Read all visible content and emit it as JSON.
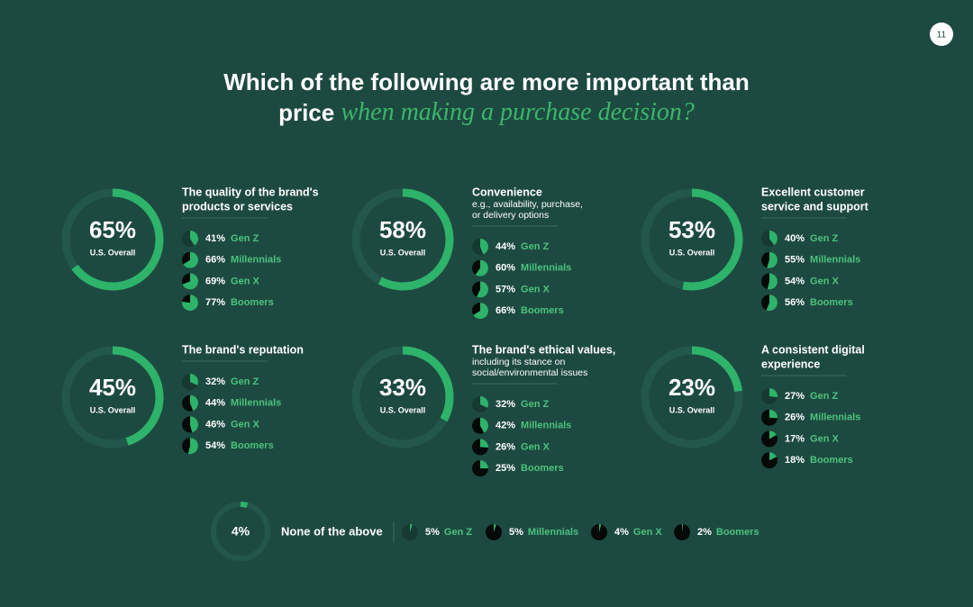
{
  "page_number": "11",
  "title": {
    "line1": "Which of the following are more important than",
    "line2_bold": "price",
    "line2_italic": "when making a purchase decision?"
  },
  "overall_caption": "U.S. Overall",
  "generations": [
    "Gen Z",
    "Millennials",
    "Gen X",
    "Boomers"
  ],
  "items": [
    {
      "title": [
        "The quality of the brand's",
        "products or services"
      ],
      "overall": 65,
      "overall_label": "65%",
      "values": [
        41,
        66,
        69,
        77
      ],
      "value_labels": [
        "41%",
        "66%",
        "69%",
        "77%"
      ]
    },
    {
      "title": [
        "Convenience"
      ],
      "subtitle": [
        "e.g., availability, purchase,",
        "or delivery options"
      ],
      "overall": 58,
      "overall_label": "58%",
      "values": [
        44,
        60,
        57,
        66
      ],
      "value_labels": [
        "44%",
        "60%",
        "57%",
        "66%"
      ]
    },
    {
      "title": [
        "Excellent customer",
        "service and support"
      ],
      "overall": 53,
      "overall_label": "53%",
      "values": [
        40,
        55,
        54,
        56
      ],
      "value_labels": [
        "40%",
        "55%",
        "54%",
        "56%"
      ]
    },
    {
      "title": [
        "The brand's reputation"
      ],
      "overall": 45,
      "overall_label": "45%",
      "values": [
        32,
        44,
        46,
        54
      ],
      "value_labels": [
        "32%",
        "44%",
        "46%",
        "54%"
      ]
    },
    {
      "title": [
        "The brand's ethical values,"
      ],
      "subtitle": [
        "including its stance on",
        "social/environmental issues"
      ],
      "overall": 33,
      "overall_label": "33%",
      "values": [
        32,
        42,
        26,
        25
      ],
      "value_labels": [
        "32%",
        "42%",
        "26%",
        "25%"
      ]
    },
    {
      "title": [
        "A consistent digital",
        "experience"
      ],
      "overall": 23,
      "overall_label": "23%",
      "values": [
        27,
        26,
        17,
        18
      ],
      "value_labels": [
        "27%",
        "26%",
        "17%",
        "18%"
      ]
    }
  ],
  "none": {
    "label": "None of the above",
    "overall": 4,
    "overall_label": "4%",
    "values": [
      5,
      5,
      4,
      2
    ],
    "value_labels": [
      "5%",
      "5%",
      "4%",
      "2%"
    ]
  }
}
